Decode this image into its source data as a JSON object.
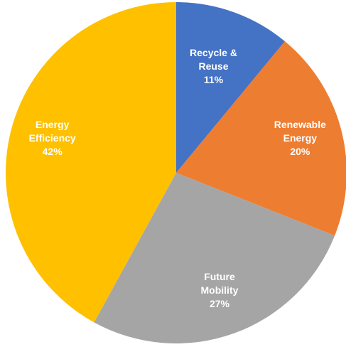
{
  "chart_data": {
    "type": "pie",
    "categories": [
      "Recycle & Reuse",
      "Renewable Energy",
      "Future Mobility",
      "Energy Efficiency"
    ],
    "values": [
      11,
      20,
      27,
      42
    ],
    "value_labels": [
      "11%",
      "20%",
      "27%",
      "42%"
    ],
    "colors": [
      "#4472c4",
      "#ed7d31",
      "#a5a5a5",
      "#ffc000"
    ]
  }
}
